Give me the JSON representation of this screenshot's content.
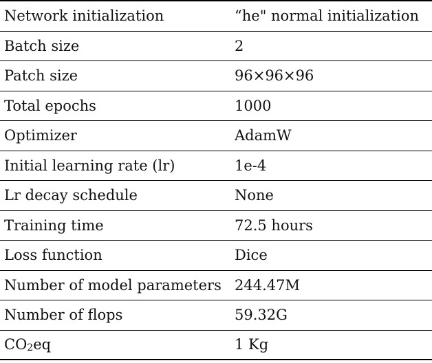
{
  "rows": [
    {
      "key": "Network initialization",
      "value": "“he\" normal initialization"
    },
    {
      "key": "Batch size",
      "value": "2"
    },
    {
      "key": "Patch size",
      "value": "96×96×96"
    },
    {
      "key": "Total epochs",
      "value": "1000"
    },
    {
      "key": "Optimizer",
      "value": "AdamW"
    },
    {
      "key": "Initial learning rate (lr)",
      "value": "1e-4"
    },
    {
      "key": "Lr decay schedule",
      "value": "None"
    },
    {
      "key": "Training time",
      "value": "72.5 hours"
    },
    {
      "key": "Loss function",
      "value": "Dice"
    },
    {
      "key": "Number of model parameters",
      "value": "244.47M"
    },
    {
      "key": "Number of flops",
      "value": "59.32G"
    },
    {
      "key_parts": [
        "CO",
        "2",
        "eq"
      ],
      "value": "1 Kg"
    }
  ]
}
